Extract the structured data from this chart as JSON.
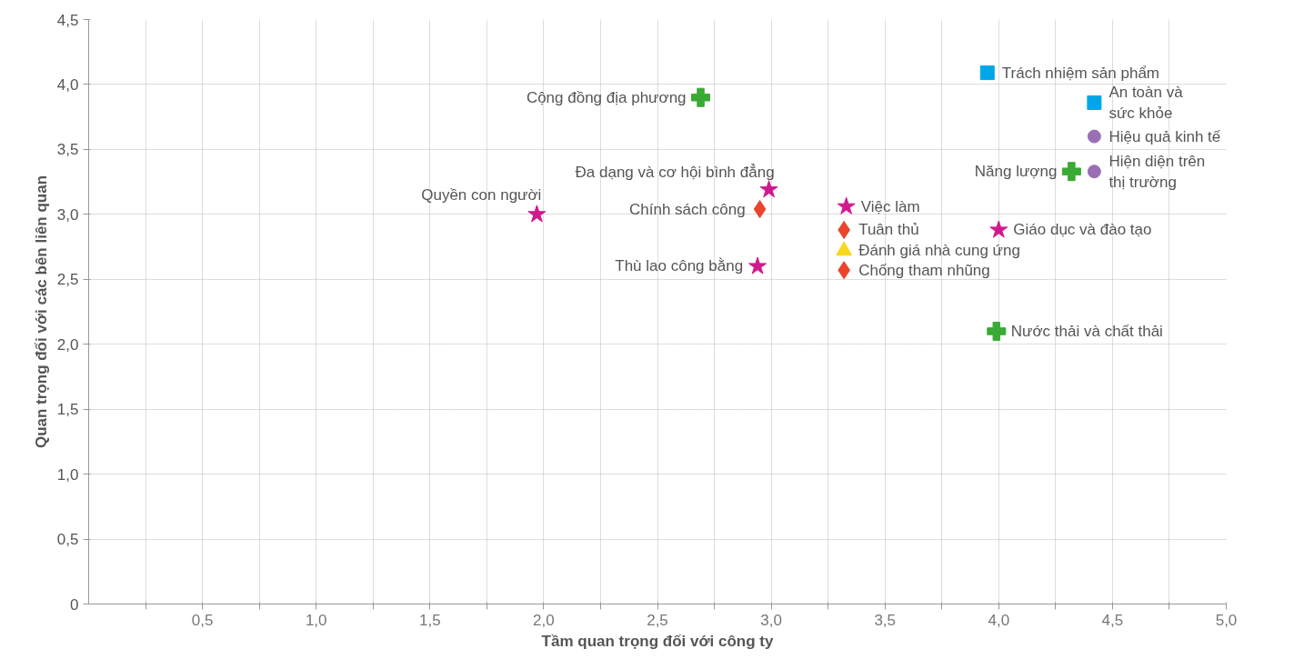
{
  "chart_data": {
    "type": "scatter",
    "xlabel": "Tầm quan trọng đối với công ty",
    "ylabel": "Quan trọng đối với các bên liên quan",
    "xlim": [
      0,
      5
    ],
    "ylim": [
      0,
      4.5
    ],
    "xticks": [
      {
        "value": 0.25,
        "label": null
      },
      {
        "value": 0.5,
        "label": "0,5"
      },
      {
        "value": 0.75,
        "label": null
      },
      {
        "value": 1,
        "label": "1,0"
      },
      {
        "value": 1.25,
        "label": null
      },
      {
        "value": 1.5,
        "label": "1,5"
      },
      {
        "value": 1.75,
        "label": null
      },
      {
        "value": 2,
        "label": "2,0"
      },
      {
        "value": 2.25,
        "label": null
      },
      {
        "value": 2.5,
        "label": "2,5"
      },
      {
        "value": 2.75,
        "label": null
      },
      {
        "value": 3,
        "label": "3,0"
      },
      {
        "value": 3.25,
        "label": null
      },
      {
        "value": 3.5,
        "label": "3,5"
      },
      {
        "value": 3.75,
        "label": null
      },
      {
        "value": 4,
        "label": "4,0"
      },
      {
        "value": 4.25,
        "label": null
      },
      {
        "value": 4.5,
        "label": "4,5"
      },
      {
        "value": 4.75,
        "label": null
      },
      {
        "value": 5,
        "label": "5,0"
      }
    ],
    "yticks": [
      0,
      {
        "value": 0.5,
        "label": "0,5"
      },
      {
        "value": 1,
        "label": "1,0"
      },
      {
        "value": 1.5,
        "label": "1,5"
      },
      {
        "value": 2,
        "label": "2,0"
      },
      {
        "value": 2.5,
        "label": "2,5"
      },
      {
        "value": 3,
        "label": "3,0"
      },
      {
        "value": 3.5,
        "label": "3,5"
      },
      {
        "value": 4,
        "label": "4,0"
      },
      {
        "value": 4.5,
        "label": "4,5"
      }
    ],
    "grid": true,
    "series": [
      {
        "color": "#3aaa35",
        "marker": "cross",
        "x": [
          2.69,
          4.32,
          3.99
        ],
        "values": [
          3.9,
          3.33,
          2.1
        ]
      },
      {
        "color": "#d0198e",
        "marker": "star",
        "x": [
          1.97,
          2.99,
          2.94,
          3.33,
          4.0
        ],
        "values": [
          3.0,
          3.19,
          2.6,
          3.06,
          2.88
        ]
      },
      {
        "color": "#e8452c",
        "marker": "diamond",
        "x": [
          2.95,
          3.32,
          3.32
        ],
        "values": [
          3.04,
          2.88,
          2.57
        ]
      },
      {
        "color": "#f9d71c",
        "marker": "triangle",
        "x": [
          3.32
        ],
        "values": [
          2.72
        ]
      },
      {
        "color": "#00a6e8",
        "marker": "square",
        "x": [
          3.95,
          4.42
        ],
        "values": [
          4.09,
          3.86
        ]
      },
      {
        "color": "#9b6fb4",
        "marker": "circle",
        "x": [
          4.42,
          4.42
        ],
        "values": [
          3.6,
          3.33
        ]
      }
    ],
    "annotations": [
      {
        "text": "Cộng đồng địa phương",
        "x": 2.69,
        "y": 3.9
      },
      {
        "text": "Năng lượng",
        "x": 4.32,
        "y": 3.33
      },
      {
        "text": "Nước thải và chất thải",
        "x": 3.99,
        "y": 2.1
      },
      {
        "text": "Quyền con người",
        "x": 1.97,
        "y": 3.0
      },
      {
        "text": "Đa dạng và cơ hội bình đẳng",
        "x": 2.99,
        "y": 3.19
      },
      {
        "text": "Thù lao công bằng",
        "x": 2.94,
        "y": 2.6
      },
      {
        "text": "Việc làm",
        "x": 3.33,
        "y": 3.06
      },
      {
        "text": "Giáo dục và đào tạo",
        "x": 4.0,
        "y": 2.88
      },
      {
        "text": "Chính sách công",
        "x": 2.95,
        "y": 3.04
      },
      {
        "text": "Tuân thủ",
        "x": 3.32,
        "y": 2.88
      },
      {
        "text": "Chống tham nhũng",
        "x": 3.32,
        "y": 2.57
      },
      {
        "text": "Đánh giá nhà cung ứng",
        "x": 3.32,
        "y": 2.72
      },
      {
        "text": "Trách nhiệm sản phẩm",
        "x": 3.95,
        "y": 4.09
      },
      {
        "text": "An toàn và sức khỏe",
        "x": 4.42,
        "y": 3.86
      },
      {
        "text": "Hiệu quả kinh tế",
        "x": 4.42,
        "y": 3.6
      },
      {
        "text": "Hiện diện trên thị trường",
        "x": 4.42,
        "y": 3.33
      }
    ]
  }
}
